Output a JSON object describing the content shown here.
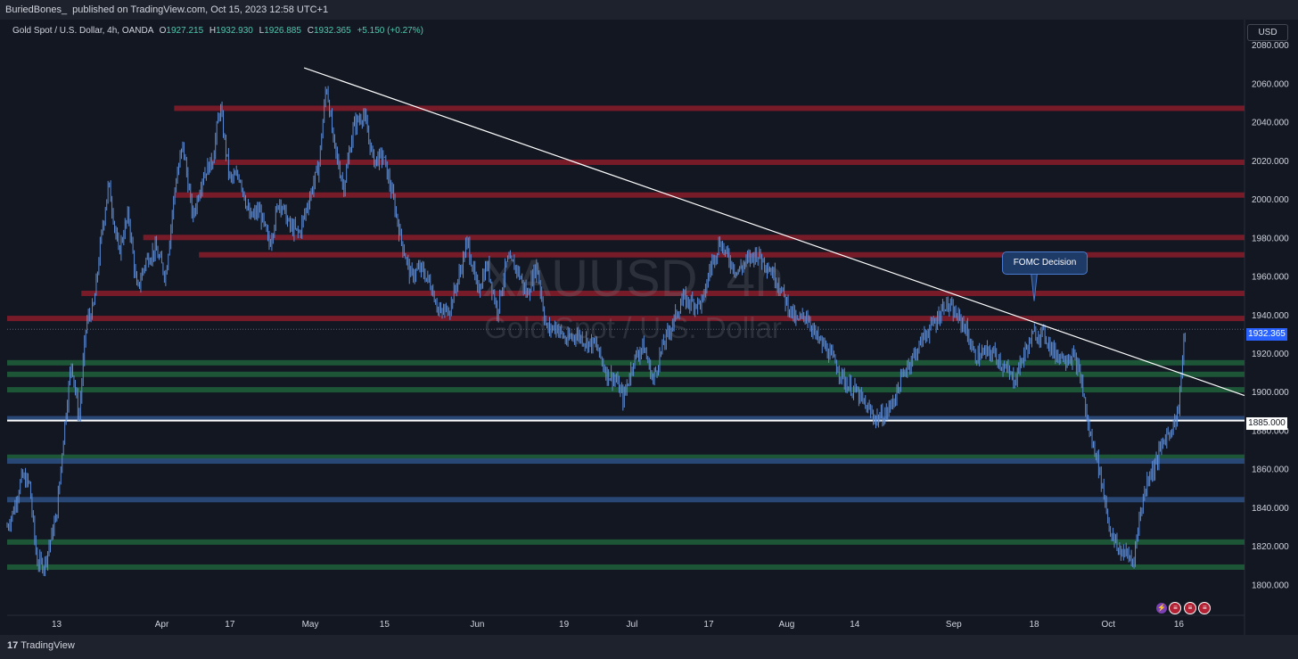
{
  "header": {
    "author": "BuriedBones_",
    "published_text": "published on TradingView.com, Oct 15, 2023 12:58 UTC+1"
  },
  "symbol": {
    "name": "Gold Spot / U.S. Dollar, 4h, OANDA",
    "open_label": "O",
    "open": "1927.215",
    "high_label": "H",
    "high": "1932.930",
    "low_label": "L",
    "low": "1926.885",
    "close_label": "C",
    "close": "1932.365",
    "change": "+5.150 (+0.27%)"
  },
  "currency": "USD",
  "watermark": {
    "symbol": "XAUUSD, 4h",
    "description": "Gold Spot / U.S. Dollar"
  },
  "annotation": {
    "label": "FOMC Decision"
  },
  "price_tags": {
    "last": "1932.365",
    "level": "1885.000"
  },
  "footer": {
    "logo_mark": "17",
    "logo_text": "TradingView"
  },
  "colors": {
    "background": "#131722",
    "resistance": "#8a1c2a",
    "support_green": "#1f5c3a",
    "support_blue": "#2a4a7a",
    "candles": "#5b8bd6",
    "trendline": "#ffffff",
    "last_price": "#2962ff"
  },
  "event_icons": [
    "lightning-icon",
    "us-flag-icon",
    "us-flag-icon",
    "us-flag-icon"
  ],
  "chart_data": {
    "type": "candlestick",
    "title": "Gold Spot / U.S. Dollar, 4h, OANDA",
    "y_ticks": [
      1800,
      1820,
      1840,
      1860,
      1880,
      1900,
      1920,
      1940,
      1960,
      1980,
      2000,
      2020,
      2040,
      2060,
      2080
    ],
    "y_tick_labels": [
      "1800.000",
      "1820.000",
      "1840.000",
      "1860.000",
      "1880.000",
      "1900.000",
      "1920.000",
      "1940.000",
      "1960.000",
      "1980.000",
      "2000.000",
      "2020.000",
      "2040.000",
      "2060.000",
      "2080.000"
    ],
    "ylim": [
      1784,
      2093
    ],
    "x_labels": [
      "13",
      "Apr",
      "17",
      "May",
      "15",
      "Jun",
      "19",
      "Jul",
      "17",
      "Aug",
      "14",
      "Sep",
      "18",
      "Oct",
      "16"
    ],
    "x_label_ticks": [
      0.04,
      0.125,
      0.18,
      0.245,
      0.305,
      0.38,
      0.45,
      0.505,
      0.567,
      0.63,
      0.685,
      0.765,
      0.83,
      0.89,
      0.947
    ],
    "price_path": [
      [
        0.0,
        1830
      ],
      [
        0.005,
        1838
      ],
      [
        0.012,
        1856
      ],
      [
        0.018,
        1852
      ],
      [
        0.024,
        1812
      ],
      [
        0.03,
        1810
      ],
      [
        0.04,
        1836
      ],
      [
        0.046,
        1880
      ],
      [
        0.052,
        1916
      ],
      [
        0.058,
        1886
      ],
      [
        0.064,
        1936
      ],
      [
        0.07,
        1944
      ],
      [
        0.076,
        1980
      ],
      [
        0.082,
        2008
      ],
      [
        0.09,
        1972
      ],
      [
        0.098,
        1992
      ],
      [
        0.105,
        1952
      ],
      [
        0.112,
        1968
      ],
      [
        0.12,
        1974
      ],
      [
        0.128,
        1960
      ],
      [
        0.136,
        2008
      ],
      [
        0.142,
        2028
      ],
      [
        0.15,
        1990
      ],
      [
        0.158,
        2012
      ],
      [
        0.166,
        2020
      ],
      [
        0.172,
        2048
      ],
      [
        0.18,
        2010
      ],
      [
        0.188,
        2012
      ],
      [
        0.196,
        1990
      ],
      [
        0.204,
        1994
      ],
      [
        0.212,
        1976
      ],
      [
        0.22,
        2000
      ],
      [
        0.228,
        1986
      ],
      [
        0.236,
        1982
      ],
      [
        0.244,
        2000
      ],
      [
        0.252,
        2018
      ],
      [
        0.258,
        2060
      ],
      [
        0.264,
        2028
      ],
      [
        0.272,
        2006
      ],
      [
        0.28,
        2038
      ],
      [
        0.288,
        2044
      ],
      [
        0.296,
        2020
      ],
      [
        0.304,
        2022
      ],
      [
        0.312,
        2000
      ],
      [
        0.318,
        1980
      ],
      [
        0.326,
        1960
      ],
      [
        0.334,
        1964
      ],
      [
        0.342,
        1956
      ],
      [
        0.35,
        1940
      ],
      [
        0.358,
        1944
      ],
      [
        0.366,
        1962
      ],
      [
        0.372,
        1978
      ],
      [
        0.38,
        1952
      ],
      [
        0.388,
        1966
      ],
      [
        0.396,
        1942
      ],
      [
        0.404,
        1968
      ],
      [
        0.412,
        1964
      ],
      [
        0.42,
        1950
      ],
      [
        0.428,
        1966
      ],
      [
        0.436,
        1932
      ],
      [
        0.444,
        1934
      ],
      [
        0.452,
        1926
      ],
      [
        0.46,
        1930
      ],
      [
        0.468,
        1926
      ],
      [
        0.476,
        1924
      ],
      [
        0.484,
        1910
      ],
      [
        0.492,
        1906
      ],
      [
        0.498,
        1896
      ],
      [
        0.506,
        1916
      ],
      [
        0.514,
        1924
      ],
      [
        0.522,
        1906
      ],
      [
        0.53,
        1924
      ],
      [
        0.538,
        1936
      ],
      [
        0.546,
        1948
      ],
      [
        0.554,
        1946
      ],
      [
        0.562,
        1946
      ],
      [
        0.568,
        1964
      ],
      [
        0.576,
        1978
      ],
      [
        0.582,
        1970
      ],
      [
        0.59,
        1962
      ],
      [
        0.598,
        1968
      ],
      [
        0.606,
        1972
      ],
      [
        0.614,
        1966
      ],
      [
        0.622,
        1958
      ],
      [
        0.63,
        1946
      ],
      [
        0.638,
        1936
      ],
      [
        0.646,
        1940
      ],
      [
        0.654,
        1928
      ],
      [
        0.662,
        1922
      ],
      [
        0.67,
        1914
      ],
      [
        0.678,
        1904
      ],
      [
        0.686,
        1900
      ],
      [
        0.694,
        1892
      ],
      [
        0.702,
        1886
      ],
      [
        0.71,
        1888
      ],
      [
        0.718,
        1898
      ],
      [
        0.726,
        1912
      ],
      [
        0.734,
        1920
      ],
      [
        0.742,
        1930
      ],
      [
        0.75,
        1936
      ],
      [
        0.758,
        1946
      ],
      [
        0.766,
        1940
      ],
      [
        0.774,
        1934
      ],
      [
        0.782,
        1918
      ],
      [
        0.79,
        1920
      ],
      [
        0.798,
        1920
      ],
      [
        0.806,
        1912
      ],
      [
        0.814,
        1906
      ],
      [
        0.822,
        1920
      ],
      [
        0.83,
        1930
      ],
      [
        0.838,
        1930
      ],
      [
        0.846,
        1920
      ],
      [
        0.854,
        1918
      ],
      [
        0.862,
        1918
      ],
      [
        0.868,
        1906
      ],
      [
        0.874,
        1880
      ],
      [
        0.88,
        1868
      ],
      [
        0.886,
        1848
      ],
      [
        0.892,
        1826
      ],
      [
        0.898,
        1818
      ],
      [
        0.904,
        1816
      ],
      [
        0.91,
        1812
      ],
      [
        0.916,
        1838
      ],
      [
        0.922,
        1856
      ],
      [
        0.928,
        1862
      ],
      [
        0.934,
        1874
      ],
      [
        0.94,
        1880
      ],
      [
        0.946,
        1888
      ],
      [
        0.952,
        1932
      ]
    ],
    "resistance_levels": [
      2047,
      2019,
      2002,
      1980,
      1971,
      1951,
      1938
    ],
    "resistance_starts": [
      0.135,
      0.165,
      0.135,
      0.11,
      0.155,
      0.06,
      0.0
    ],
    "support_green_levels": [
      1915,
      1909,
      1901,
      1866,
      1822,
      1809
    ],
    "support_blue_levels": [
      1886,
      1864,
      1844
    ],
    "key_level": 1885,
    "trendline": {
      "from": [
        0.24,
        2068
      ],
      "to": [
        1.0,
        1898
      ]
    },
    "event_marker": {
      "x": 0.83,
      "y": 1947
    },
    "last_price": 1932.365
  }
}
